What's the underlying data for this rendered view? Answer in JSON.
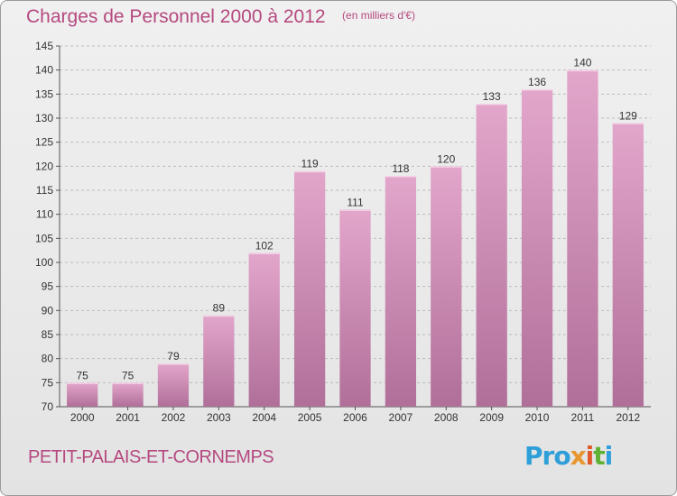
{
  "title": "Charges de Personnel 2000 à 2012",
  "subtitle": "(en milliers d'€)",
  "location": "PETIT-PALAIS-ET-CORNEMPS",
  "logo": [
    "Pro",
    "x",
    "i",
    "t",
    "i"
  ],
  "colors": {
    "accent": "#b5497f",
    "bar_top": "#e3a6cb",
    "bar_bottom": "#b06f99",
    "gridline": "#bcbcbc"
  },
  "chart_data": {
    "type": "bar",
    "categories": [
      "2000",
      "2001",
      "2002",
      "2003",
      "2004",
      "2005",
      "2006",
      "2007",
      "2008",
      "2009",
      "2010",
      "2011",
      "2012"
    ],
    "values": [
      75,
      75,
      79,
      89,
      102,
      119,
      111,
      118,
      120,
      133,
      136,
      140,
      129
    ],
    "data_labels": [
      "75",
      "75",
      "79",
      "89",
      "102",
      "119",
      "111",
      "118",
      "120",
      "133",
      "136",
      "140",
      "129"
    ],
    "ylim": [
      70,
      145
    ],
    "yticks": [
      70,
      75,
      80,
      85,
      90,
      95,
      100,
      105,
      110,
      115,
      120,
      125,
      130,
      135,
      140,
      145
    ],
    "grid": true,
    "xlabel": "",
    "ylabel": ""
  }
}
